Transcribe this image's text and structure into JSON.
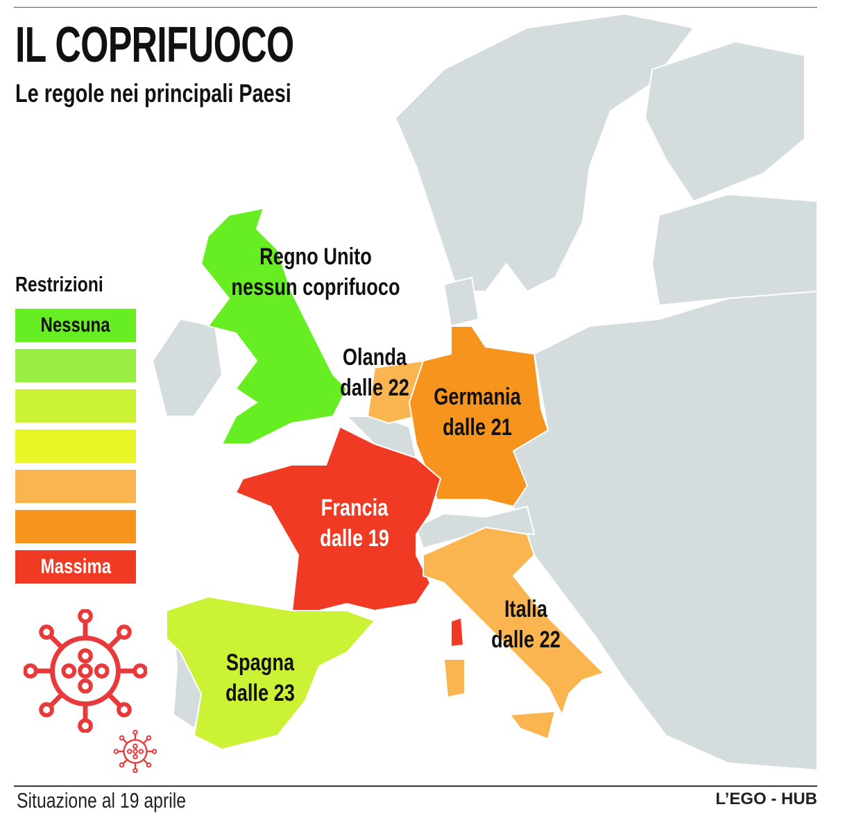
{
  "header": {
    "title": "IL COPRIFUOCO",
    "subtitle": "Le regole nei principali Paesi"
  },
  "legend": {
    "title": "Restrizioni",
    "items": [
      {
        "label": "Nessuna",
        "color": "#66ee22",
        "text_color": "#111111"
      },
      {
        "label": "",
        "color": "#99ee44"
      },
      {
        "label": "",
        "color": "#ccf236"
      },
      {
        "label": "",
        "color": "#e8f526"
      },
      {
        "label": "",
        "color": "#fbb550"
      },
      {
        "label": "",
        "color": "#f7941d"
      },
      {
        "label": "Massima",
        "color": "#f03a24",
        "text_color": "#ffffff"
      }
    ]
  },
  "countries": {
    "uk": {
      "name": "Regno Unito",
      "rule": "nessun coprifuoco",
      "color": "#66ee22"
    },
    "netherlands": {
      "name": "Olanda",
      "rule": "dalle 22",
      "color": "#fbb550"
    },
    "germany": {
      "name": "Germania",
      "rule": "dalle 21",
      "color": "#f7941d"
    },
    "france": {
      "name": "Francia",
      "rule": "dalle 19",
      "color": "#f03a24"
    },
    "italy": {
      "name": "Italia",
      "rule": "dalle 22",
      "color": "#fbb550"
    },
    "spain": {
      "name": "Spagna",
      "rule": "dalle 23",
      "color": "#ccf236"
    }
  },
  "colors": {
    "land_other": "#d5dcde",
    "borders": "#ffffff",
    "virus_icon": "#e8393b"
  },
  "icons": [
    "virus-icon-large",
    "virus-icon-small"
  ],
  "footer": {
    "date_note": "Situazione al 19 aprile",
    "credit": "L’EGO - HUB"
  }
}
